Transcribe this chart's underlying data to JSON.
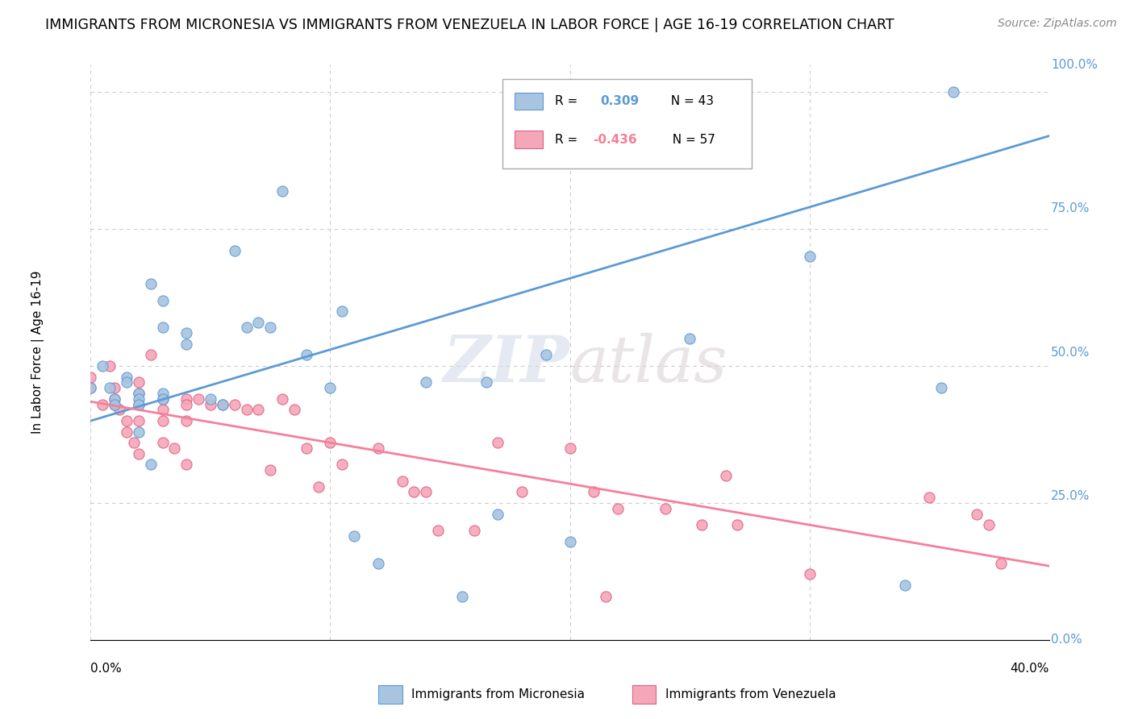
{
  "title": "IMMIGRANTS FROM MICRONESIA VS IMMIGRANTS FROM VENEZUELA IN LABOR FORCE | AGE 16-19 CORRELATION CHART",
  "source": "Source: ZipAtlas.com",
  "ylabel": "In Labor Force | Age 16-19",
  "color_micronesia": "#a8c4e0",
  "color_venezuela": "#f4a7b9",
  "line_color_micronesia": "#5b9bd5",
  "line_color_venezuela": "#f48099",
  "edge_color_micronesia": "#5b9bd5",
  "edge_color_venezuela": "#e06080",
  "watermark": "ZIPatlas",
  "xlim": [
    0.0,
    0.4
  ],
  "ylim": [
    0.0,
    1.05
  ],
  "micronesia_x": [
    0.0,
    0.005,
    0.008,
    0.01,
    0.01,
    0.015,
    0.015,
    0.02,
    0.02,
    0.02,
    0.02,
    0.025,
    0.025,
    0.03,
    0.03,
    0.03,
    0.03,
    0.04,
    0.04,
    0.05,
    0.055,
    0.06,
    0.065,
    0.07,
    0.075,
    0.08,
    0.09,
    0.1,
    0.105,
    0.11,
    0.12,
    0.14,
    0.155,
    0.165,
    0.17,
    0.19,
    0.2,
    0.25,
    0.255,
    0.3,
    0.34,
    0.355,
    0.36
  ],
  "micronesia_y": [
    0.46,
    0.5,
    0.46,
    0.44,
    0.43,
    0.48,
    0.47,
    0.45,
    0.44,
    0.43,
    0.38,
    0.32,
    0.65,
    0.62,
    0.57,
    0.45,
    0.44,
    0.56,
    0.54,
    0.44,
    0.43,
    0.71,
    0.57,
    0.58,
    0.57,
    0.82,
    0.52,
    0.46,
    0.6,
    0.19,
    0.14,
    0.47,
    0.08,
    0.47,
    0.23,
    0.52,
    0.18,
    0.55,
    1.0,
    0.7,
    0.1,
    0.46,
    1.0
  ],
  "venezuela_x": [
    0.0,
    0.0,
    0.005,
    0.008,
    0.01,
    0.01,
    0.01,
    0.012,
    0.015,
    0.015,
    0.018,
    0.02,
    0.02,
    0.02,
    0.02,
    0.02,
    0.025,
    0.03,
    0.03,
    0.03,
    0.03,
    0.035,
    0.04,
    0.04,
    0.04,
    0.04,
    0.045,
    0.05,
    0.055,
    0.06,
    0.065,
    0.07,
    0.075,
    0.08,
    0.085,
    0.09,
    0.095,
    0.1,
    0.105,
    0.12,
    0.13,
    0.135,
    0.14,
    0.145,
    0.16,
    0.17,
    0.18,
    0.2,
    0.21,
    0.215,
    0.22,
    0.24,
    0.255,
    0.265,
    0.27,
    0.3,
    0.35,
    0.37,
    0.375,
    0.38
  ],
  "venezuela_y": [
    0.48,
    0.46,
    0.43,
    0.5,
    0.46,
    0.44,
    0.43,
    0.42,
    0.4,
    0.38,
    0.36,
    0.47,
    0.45,
    0.43,
    0.4,
    0.34,
    0.52,
    0.44,
    0.42,
    0.4,
    0.36,
    0.35,
    0.44,
    0.43,
    0.4,
    0.32,
    0.44,
    0.43,
    0.43,
    0.43,
    0.42,
    0.42,
    0.31,
    0.44,
    0.42,
    0.35,
    0.28,
    0.36,
    0.32,
    0.35,
    0.29,
    0.27,
    0.27,
    0.2,
    0.2,
    0.36,
    0.27,
    0.35,
    0.27,
    0.08,
    0.24,
    0.24,
    0.21,
    0.3,
    0.21,
    0.12,
    0.26,
    0.23,
    0.21,
    0.14
  ],
  "mic_line_x": [
    0.0,
    0.4
  ],
  "mic_line_y": [
    0.4,
    0.92
  ],
  "ven_line_x": [
    0.0,
    0.4
  ],
  "ven_line_y": [
    0.435,
    0.135
  ],
  "yticks": [
    0.0,
    0.25,
    0.5,
    0.75,
    1.0
  ],
  "ytick_labels": [
    "0.0%",
    "25.0%",
    "50.0%",
    "75.0%",
    "100.0%"
  ],
  "xtick_labels": [
    "0.0%",
    "",
    "",
    "",
    "40.0%"
  ]
}
